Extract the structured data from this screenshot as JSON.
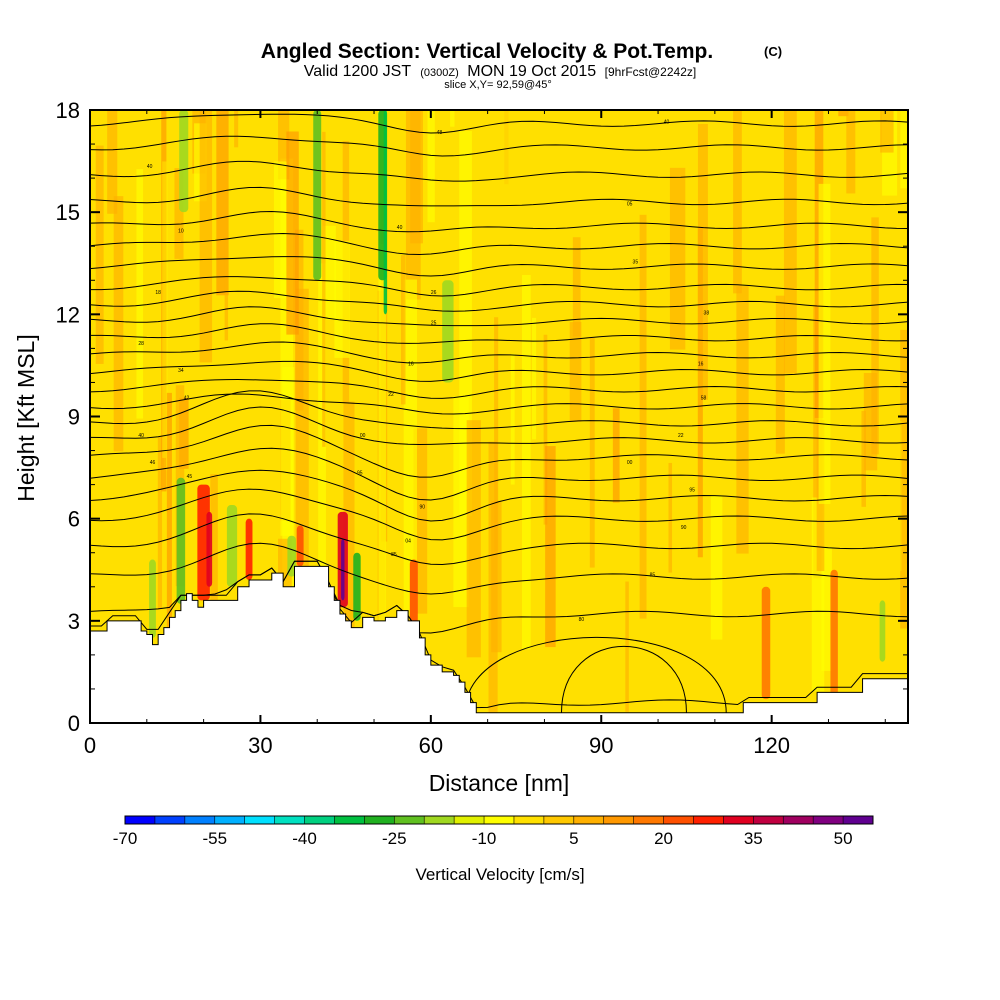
{
  "chart_data": {
    "type": "heatmap",
    "title": "Angled Section: Vertical Velocity & Pot.Temp.",
    "title_suffix": "(C)",
    "subtitle_prefix": "Valid 1200 JST",
    "subtitle_zulu": "(0300Z)",
    "subtitle_date": "MON 19 Oct 2015",
    "subtitle_fcst": "[9hrFcst@2242z]",
    "slice_text": "slice X,Y= 92,59@45°",
    "xlabel": "Distance [nm]",
    "ylabel": "Height [Kft MSL]",
    "xlim": [
      0,
      144
    ],
    "ylim": [
      0,
      18
    ],
    "x_ticks": [
      0,
      30,
      60,
      90,
      120
    ],
    "y_ticks": [
      0,
      3,
      6,
      9,
      12,
      15,
      18
    ],
    "terrain": {
      "x": [
        0,
        3,
        6,
        9,
        10,
        11,
        12,
        13,
        14,
        15,
        16,
        17,
        18,
        19,
        20,
        22,
        24,
        26,
        28,
        30,
        32,
        34,
        36,
        38,
        40,
        42,
        43,
        44,
        45,
        46,
        47,
        48,
        50,
        52,
        54,
        56,
        58,
        59,
        60,
        62,
        64,
        65,
        66,
        67,
        68,
        70,
        80,
        100,
        115,
        125,
        128,
        136,
        144
      ],
      "y": [
        2.7,
        3.0,
        3.0,
        2.7,
        2.6,
        2.3,
        2.6,
        2.8,
        3.1,
        3.3,
        3.6,
        3.8,
        3.6,
        3.4,
        3.6,
        3.6,
        3.6,
        4.0,
        4.2,
        4.2,
        4.4,
        4.0,
        4.6,
        4.6,
        4.6,
        4.0,
        3.6,
        3.2,
        3.0,
        2.8,
        2.8,
        3.1,
        3.0,
        3.1,
        3.3,
        3.0,
        2.5,
        2.0,
        1.7,
        1.5,
        1.4,
        1.2,
        0.9,
        0.6,
        0.3,
        0.3,
        0.3,
        0.3,
        0.6,
        0.6,
        0.9,
        1.3,
        1.3
      ]
    },
    "isentropes": {
      "base_heights": [
        0.6,
        3.2,
        4.3,
        5.2,
        6.0,
        6.6,
        7.2,
        7.8,
        8.3,
        8.8,
        9.3,
        9.8,
        10.3,
        10.8,
        11.3,
        11.8,
        12.3,
        12.8,
        13.4,
        14.0,
        14.6,
        15.3,
        16.1,
        16.9,
        17.6
      ],
      "labels": [
        {
          "x": 9,
          "y": 8.4,
          "text": "40"
        },
        {
          "x": 11,
          "y": 7.6,
          "text": "46"
        },
        {
          "x": 17.5,
          "y": 7.2,
          "text": "45"
        },
        {
          "x": 17,
          "y": 9.5,
          "text": "42"
        },
        {
          "x": 16,
          "y": 10.3,
          "text": "34"
        },
        {
          "x": 9,
          "y": 11.1,
          "text": "28"
        },
        {
          "x": 12,
          "y": 12.6,
          "text": "18"
        },
        {
          "x": 16,
          "y": 14.4,
          "text": "10"
        },
        {
          "x": 10.5,
          "y": 16.3,
          "text": "40"
        },
        {
          "x": 48,
          "y": 8.4,
          "text": "00"
        },
        {
          "x": 47.5,
          "y": 7.3,
          "text": "95"
        },
        {
          "x": 53,
          "y": 9.6,
          "text": "22"
        },
        {
          "x": 56.5,
          "y": 10.5,
          "text": "16"
        },
        {
          "x": 60.5,
          "y": 11.7,
          "text": "25"
        },
        {
          "x": 60.5,
          "y": 12.6,
          "text": "26"
        },
        {
          "x": 54.5,
          "y": 14.5,
          "text": "40"
        },
        {
          "x": 61.5,
          "y": 17.3,
          "text": "48"
        },
        {
          "x": 58.5,
          "y": 6.3,
          "text": "90"
        },
        {
          "x": 53.5,
          "y": 4.9,
          "text": "85"
        },
        {
          "x": 56,
          "y": 5.3,
          "text": "04"
        },
        {
          "x": 86.5,
          "y": 3.0,
          "text": "80"
        },
        {
          "x": 99,
          "y": 4.3,
          "text": "85"
        },
        {
          "x": 104.5,
          "y": 5.7,
          "text": "90"
        },
        {
          "x": 106,
          "y": 6.8,
          "text": "95"
        },
        {
          "x": 95,
          "y": 7.6,
          "text": "00"
        },
        {
          "x": 104,
          "y": 8.4,
          "text": "22"
        },
        {
          "x": 108,
          "y": 9.5,
          "text": "58"
        },
        {
          "x": 107.5,
          "y": 10.5,
          "text": "16"
        },
        {
          "x": 108.5,
          "y": 12.0,
          "text": "38"
        },
        {
          "x": 96,
          "y": 13.5,
          "text": "35"
        },
        {
          "x": 95,
          "y": 15.2,
          "text": "05"
        },
        {
          "x": 101.5,
          "y": 17.6,
          "text": "40"
        }
      ]
    },
    "colorbar": {
      "title": "Vertical Velocity [cm/s]",
      "tick_labels": [
        "-70",
        "-55",
        "-40",
        "-25",
        "-10",
        "5",
        "20",
        "35",
        "50"
      ],
      "colors": [
        "#0000ff",
        "#0040ff",
        "#0080ff",
        "#00b0ff",
        "#00e0ff",
        "#00e0c0",
        "#00d080",
        "#00c040",
        "#20b020",
        "#60c020",
        "#a0d820",
        "#e0f000",
        "#ffff00",
        "#ffe000",
        "#ffc800",
        "#ffb000",
        "#ff9800",
        "#ff7800",
        "#ff5000",
        "#ff2000",
        "#e00020",
        "#c00040",
        "#a00060",
        "#800080",
        "#600090"
      ]
    },
    "background_color": "#ffe000",
    "legend": "none"
  }
}
